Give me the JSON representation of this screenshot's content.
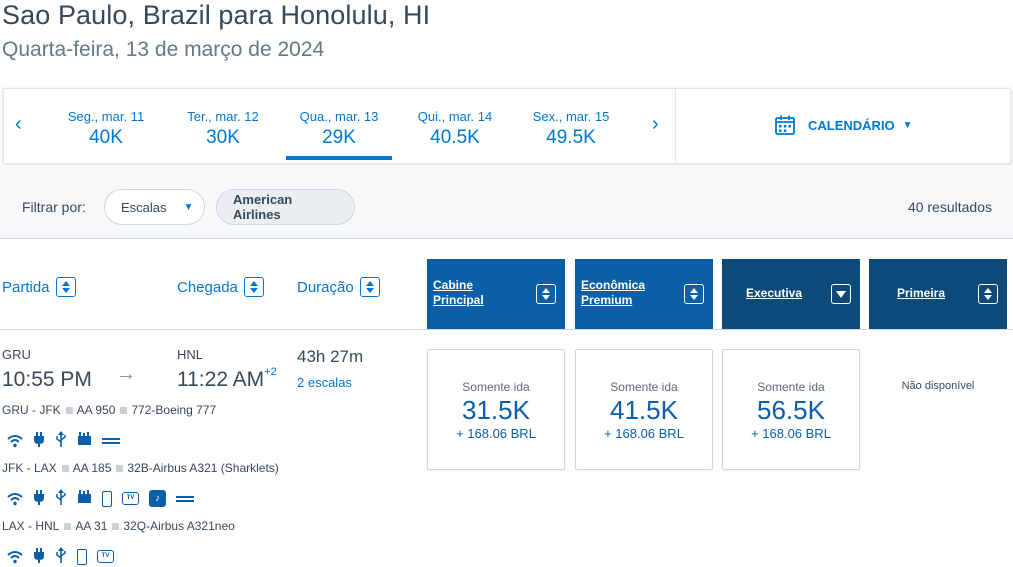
{
  "header": {
    "route": "Sao Paulo, Brazil para Honolulu, HI",
    "date": "Quarta-feira, 13 de março de 2024"
  },
  "date_bar": {
    "prev_icon": "chevron-left-icon",
    "next_icon": "chevron-right-icon",
    "days": [
      {
        "label": "Seg., mar. 11",
        "price": "40K"
      },
      {
        "label": "Ter., mar. 12",
        "price": "30K"
      },
      {
        "label": "Qua., mar. 13",
        "price": "29K"
      },
      {
        "label": "Qui., mar. 14",
        "price": "40.5K"
      },
      {
        "label": "Sex., mar. 15",
        "price": "49.5K"
      }
    ],
    "selected_index": 2,
    "calendar_label": "CALENDÁRIO",
    "calendar_icon": "calendar-icon"
  },
  "filters": {
    "label": "Filtrar por:",
    "stops": "Escalas",
    "airline": "American Airlines",
    "results": "40 resultados"
  },
  "columns": {
    "departure": "Partida",
    "arrival": "Chegada",
    "duration": "Duração"
  },
  "cabins": [
    {
      "line1": "Cabine",
      "line2": "Principal"
    },
    {
      "line1": "Econômica",
      "line2": "Premium"
    },
    {
      "line1": "Executiva",
      "line2": ""
    },
    {
      "line1": "Primeira",
      "line2": ""
    }
  ],
  "flight": {
    "origin": "GRU",
    "dep_time": "10:55 PM",
    "destination": "HNL",
    "arr_time": "11:22 AM",
    "day_offset": "+2",
    "duration": "43h 27m",
    "stops": "2 escalas",
    "segments": [
      {
        "route": "GRU - JFK",
        "flight": "AA 950",
        "aircraft": "772-Boeing 777",
        "amenities": [
          "wifi-icon",
          "power-icon",
          "usb-icon",
          "meal-icon",
          "seat-icon"
        ]
      },
      {
        "route": "JFK - LAX",
        "flight": "AA 185",
        "aircraft": "32B-Airbus A321 (Sharklets)",
        "amenities": [
          "wifi-icon",
          "power-icon",
          "usb-icon",
          "meal-icon",
          "phone-icon",
          "tv-icon",
          "music-icon",
          "seat-icon"
        ]
      },
      {
        "route": "LAX - HNL",
        "flight": "AA 31",
        "aircraft": "32Q-Airbus A321neo",
        "amenities": [
          "wifi-icon",
          "power-icon",
          "usb-icon",
          "phone-icon",
          "tv-icon"
        ]
      }
    ],
    "prices": [
      {
        "label": "Somente ida",
        "miles": "31.5K",
        "tax": "+ 168.06 BRL"
      },
      {
        "label": "Somente ida",
        "miles": "41.5K",
        "tax": "+ 168.06 BRL"
      },
      {
        "label": "Somente ida",
        "miles": "56.5K",
        "tax": "+ 168.06 BRL"
      }
    ],
    "unavailable": "Não disponível"
  }
}
